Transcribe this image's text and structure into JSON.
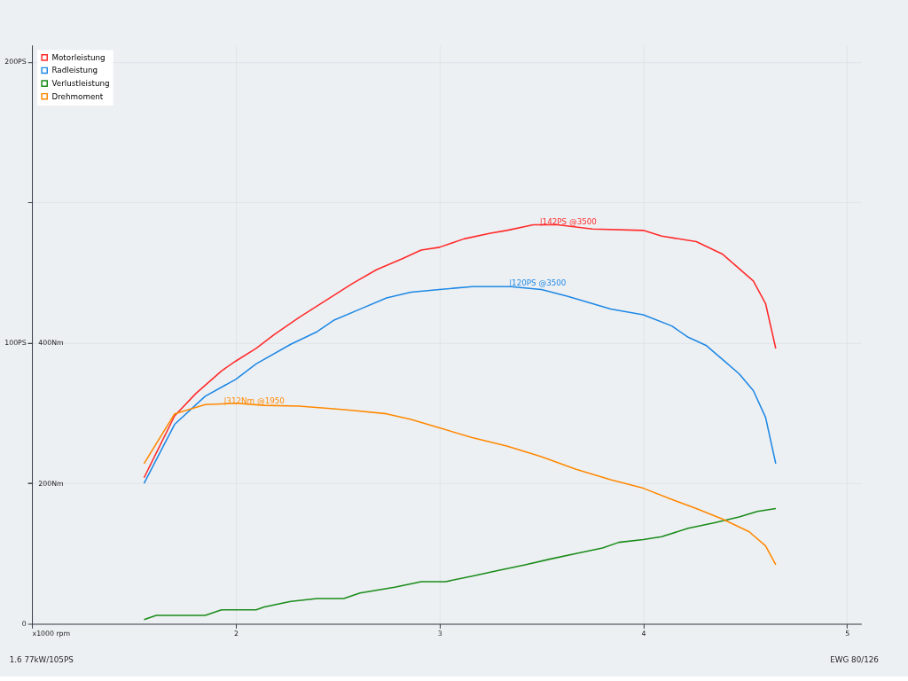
{
  "chart_data": {
    "type": "line",
    "x": [
      1.55,
      1.7,
      1.805,
      1.93,
      2.0,
      2.1,
      2.19,
      2.31,
      2.44,
      2.57,
      2.69,
      2.82,
      2.91,
      3.0,
      3.12,
      3.25,
      3.33,
      3.46,
      3.58,
      3.75,
      4.0,
      4.09,
      4.26,
      4.39,
      4.54,
      4.6,
      4.65
    ],
    "series": [
      {
        "name": "Motorleistung",
        "color": "#ff2a2a",
        "values": [
          52,
          74,
          82,
          90,
          93.5,
          98,
          103,
          109,
          115,
          121,
          126,
          130,
          133,
          134,
          137,
          139,
          140,
          142,
          142,
          140.5,
          140,
          138,
          136,
          131.5,
          122,
          114,
          98
        ]
      },
      {
        "name": "Radleistung",
        "color": "#1e88e5",
        "x": [
          1.55,
          1.7,
          1.85,
          2.0,
          2.1,
          2.27,
          2.4,
          2.48,
          2.61,
          2.74,
          2.86,
          3.0,
          3.16,
          3.35,
          3.5,
          3.63,
          3.84,
          4.0,
          4.14,
          4.22,
          4.31,
          4.39,
          4.47,
          4.54,
          4.6,
          4.65
        ],
        "values": [
          50,
          71,
          81,
          87,
          92.5,
          99.5,
          104,
          108,
          112,
          116,
          118,
          119,
          120,
          120,
          119,
          116.5,
          112,
          110,
          106,
          102,
          99,
          94,
          89,
          83,
          73.5,
          57
        ]
      },
      {
        "name": "Verlustleistung",
        "color": "#1a8c1a",
        "x": [
          1.55,
          1.61,
          1.85,
          1.93,
          2.1,
          2.14,
          2.27,
          2.4,
          2.53,
          2.61,
          2.78,
          2.91,
          3.03,
          3.16,
          3.29,
          3.42,
          3.54,
          3.67,
          3.8,
          3.88,
          4.0,
          4.09,
          4.22,
          4.35,
          4.47,
          4.56,
          4.65
        ],
        "values": [
          1.5,
          3,
          3,
          5,
          5,
          6,
          8,
          9,
          9,
          11,
          13,
          15,
          15,
          17,
          19,
          21,
          23,
          25,
          27,
          29,
          30,
          31,
          34,
          36,
          38,
          40,
          41
        ]
      },
      {
        "name": "Drehmoment",
        "color": "#ff8800",
        "axis": "y2",
        "x": [
          1.55,
          1.7,
          1.85,
          2.0,
          2.14,
          2.31,
          2.48,
          2.57,
          2.74,
          2.86,
          3.0,
          3.16,
          3.33,
          3.5,
          3.67,
          3.84,
          4.0,
          4.14,
          4.26,
          4.39,
          4.52,
          4.6,
          4.65
        ],
        "values": [
          228,
          299,
          312,
          314,
          311,
          310,
          306,
          304,
          299,
          291,
          279,
          265,
          253,
          238,
          220,
          205,
          193,
          177,
          164,
          149,
          131,
          111,
          84
        ]
      }
    ],
    "xlim": [
      1,
      5.07
    ],
    "xticks": [
      {
        "value": 1,
        "label": "x1000 rpm"
      },
      2,
      3,
      4,
      5
    ],
    "ylim": [
      0,
      206
    ],
    "yticks": [
      0,
      {
        "value": 50,
        "label": null
      },
      {
        "value": 100,
        "label": "100PS"
      },
      {
        "value": 150,
        "label": null
      },
      {
        "value": 200,
        "label": "200PS"
      }
    ],
    "y2lim": [
      0,
      824
    ],
    "y2ticks": [
      {
        "value": 200,
        "label": "200Nm"
      },
      {
        "value": 400,
        "label": "400Nm"
      }
    ],
    "grid": true,
    "legend": "top left",
    "annotations": [
      {
        "text": "|142PS @3500",
        "x": 3.5,
        "y": 142
      },
      {
        "text": "|120PS @3500",
        "x": 3.35,
        "y": 120
      },
      {
        "text": "|312Nm @1950",
        "x": 1.95,
        "y": 78
      },
      "1.6 77kW/105PS",
      "EWG 80/126"
    ]
  }
}
